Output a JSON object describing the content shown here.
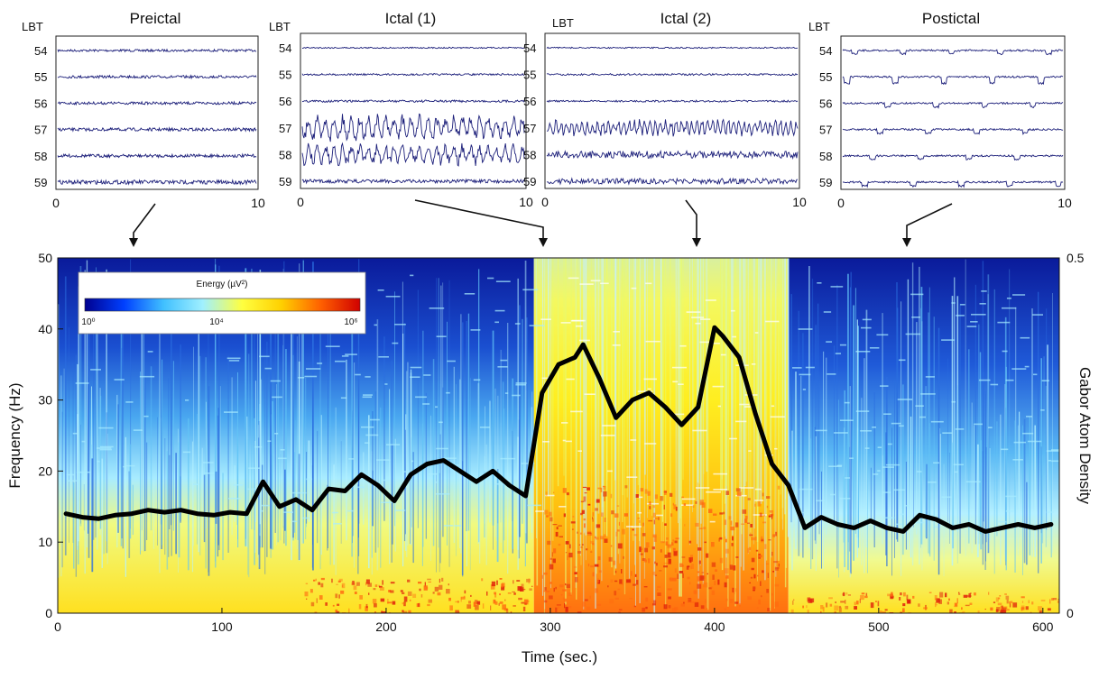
{
  "chart_data": [
    {
      "type": "line",
      "title": "Preictal",
      "ylabel": "LBT",
      "channels": [
        "54",
        "55",
        "56",
        "57",
        "58",
        "59"
      ],
      "xlim": [
        0,
        10
      ],
      "xticks": [
        "0",
        "10"
      ],
      "activity": [
        0.25,
        0.3,
        0.3,
        0.35,
        0.35,
        0.45
      ]
    },
    {
      "type": "line",
      "title": "Ictal (1)",
      "ylabel": "LBT",
      "channels": [
        "54",
        "55",
        "56",
        "57",
        "58",
        "59"
      ],
      "xlim": [
        0,
        10
      ],
      "xticks": [
        "0",
        "10"
      ],
      "activity": [
        0.15,
        0.2,
        0.25,
        1.6,
        1.3,
        0.4
      ]
    },
    {
      "type": "line",
      "title": "Ictal (2)",
      "ylabel": "LBT",
      "channels": [
        "54",
        "55",
        "56",
        "57",
        "58",
        "59"
      ],
      "xlim": [
        0,
        10
      ],
      "xticks": [
        "0",
        "10"
      ],
      "activity": [
        0.15,
        0.2,
        0.2,
        1.0,
        0.8,
        0.6
      ]
    },
    {
      "type": "line",
      "title": "Postictal",
      "ylabel": "LBT",
      "channels": [
        "54",
        "55",
        "56",
        "57",
        "58",
        "59"
      ],
      "xlim": [
        0,
        10
      ],
      "xticks": [
        "0",
        "10"
      ],
      "activity": [
        0.3,
        0.6,
        0.35,
        0.35,
        0.3,
        0.35
      ]
    },
    {
      "type": "heatmap",
      "xlabel": "Time (sec.)",
      "ylabel": "Frequency (Hz)",
      "y2label": "Gabor Atom Density",
      "xlim": [
        0,
        610
      ],
      "ylim": [
        0,
        50
      ],
      "y2lim": [
        0,
        0.5
      ],
      "xticks": [
        "0",
        "100",
        "200",
        "300",
        "400",
        "500",
        "600"
      ],
      "yticks": [
        "0",
        "10",
        "20",
        "30",
        "40",
        "50"
      ],
      "y2ticks": [
        "0",
        "0.5"
      ],
      "colorbar": {
        "title": "Energy (µV²)",
        "ticks": [
          "10⁰",
          "10⁴",
          "10⁶"
        ],
        "colormap": [
          "#00008f",
          "#0040ff",
          "#40c0ff",
          "#a0f0ff",
          "#ffff40",
          "#ffd000",
          "#ff6000",
          "#d00000"
        ]
      },
      "series": [
        {
          "x": [
            5,
            15,
            25,
            35,
            45,
            55,
            65,
            75,
            85,
            95,
            105,
            115,
            125,
            135,
            145,
            155,
            165,
            175,
            185,
            195,
            205,
            215,
            225,
            235,
            245,
            255,
            265,
            275,
            285,
            295,
            305,
            315,
            320,
            330,
            340,
            350,
            360,
            370,
            380,
            390,
            400,
            405,
            415,
            425,
            435,
            445,
            455,
            465,
            475,
            485,
            495,
            505,
            515,
            525,
            535,
            545,
            555,
            565,
            575,
            585,
            595,
            605
          ],
          "y": [
            14,
            13.5,
            13.3,
            13.8,
            14,
            14.5,
            14.2,
            14.5,
            14,
            13.8,
            14.2,
            14,
            18.5,
            15,
            16,
            14.5,
            17.5,
            17.2,
            19.5,
            18,
            15.8,
            19.5,
            21,
            21.5,
            20,
            18.5,
            20,
            18,
            16.5,
            31,
            35,
            36,
            37.8,
            33,
            27.5,
            30,
            31,
            29,
            26.5,
            29,
            40.2,
            39,
            36,
            28,
            21,
            18,
            12,
            13.5,
            12.5,
            12,
            13,
            12,
            11.5,
            13.8,
            13.2,
            12,
            12.5,
            11.5,
            12,
            12.5,
            12,
            12.5
          ],
          "y2": [
            0.14,
            0.135,
            0.133,
            0.138,
            0.14,
            0.145,
            0.142,
            0.145,
            0.14,
            0.138,
            0.142,
            0.14,
            0.185,
            0.15,
            0.16,
            0.145,
            0.175,
            0.172,
            0.195,
            0.18,
            0.158,
            0.195,
            0.21,
            0.215,
            0.2,
            0.185,
            0.2,
            0.18,
            0.165,
            0.31,
            0.35,
            0.36,
            0.378,
            0.33,
            0.275,
            0.3,
            0.31,
            0.29,
            0.265,
            0.29,
            0.402,
            0.39,
            0.36,
            0.28,
            0.21,
            0.18,
            0.12,
            0.135,
            0.125,
            0.12,
            0.13,
            0.12,
            0.115,
            0.138,
            0.132,
            0.12,
            0.125,
            0.115,
            0.12,
            0.125,
            0.12,
            0.125
          ]
        }
      ],
      "segments_s": [
        {
          "from": 0,
          "to": 290,
          "level": "low"
        },
        {
          "from": 290,
          "to": 445,
          "level": "high"
        },
        {
          "from": 445,
          "to": 610,
          "level": "low"
        }
      ]
    }
  ]
}
